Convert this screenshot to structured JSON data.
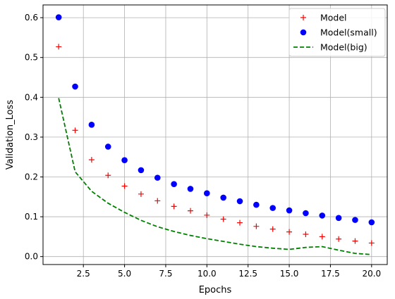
{
  "chart_data": {
    "type": "scatter",
    "xlabel": "Epochs",
    "ylabel": "Validation_Loss",
    "xlim": [
      0.05,
      20.95
    ],
    "ylim": [
      -0.02,
      0.632
    ],
    "xticks": [
      2.5,
      5.0,
      7.5,
      10.0,
      12.5,
      15.0,
      17.5,
      20.0
    ],
    "xtick_labels": [
      "2.5",
      "5.0",
      "7.5",
      "10.0",
      "12.5",
      "15.0",
      "17.5",
      "20.0"
    ],
    "yticks": [
      0.0,
      0.1,
      0.2,
      0.3,
      0.4,
      0.5,
      0.6
    ],
    "ytick_labels": [
      "0.0",
      "0.1",
      "0.2",
      "0.3",
      "0.4",
      "0.5",
      "0.6"
    ],
    "grid": true,
    "legend_position": "top-right",
    "x": [
      1,
      2,
      3,
      4,
      5,
      6,
      7,
      8,
      9,
      10,
      11,
      12,
      13,
      14,
      15,
      16,
      17,
      18,
      19,
      20
    ],
    "series": [
      {
        "name": "Model",
        "style": "plus",
        "color": "#ff0000",
        "values": [
          0.527,
          0.317,
          0.243,
          0.204,
          0.177,
          0.157,
          0.14,
          0.126,
          0.115,
          0.104,
          0.094,
          0.085,
          0.076,
          0.069,
          0.062,
          0.056,
          0.05,
          0.044,
          0.039,
          0.034
        ]
      },
      {
        "name": "Model(small)",
        "style": "circle",
        "color": "#0000ff",
        "values": [
          0.601,
          0.427,
          0.331,
          0.276,
          0.242,
          0.217,
          0.198,
          0.182,
          0.17,
          0.159,
          0.148,
          0.139,
          0.13,
          0.122,
          0.116,
          0.109,
          0.103,
          0.097,
          0.092,
          0.086
        ]
      },
      {
        "name": "Model(big)",
        "style": "dashed-line",
        "color": "#008000",
        "values": [
          0.398,
          0.213,
          0.164,
          0.134,
          0.111,
          0.091,
          0.075,
          0.063,
          0.053,
          0.045,
          0.038,
          0.031,
          0.025,
          0.021,
          0.018,
          0.023,
          0.025,
          0.016,
          0.008,
          0.005
        ]
      }
    ]
  }
}
